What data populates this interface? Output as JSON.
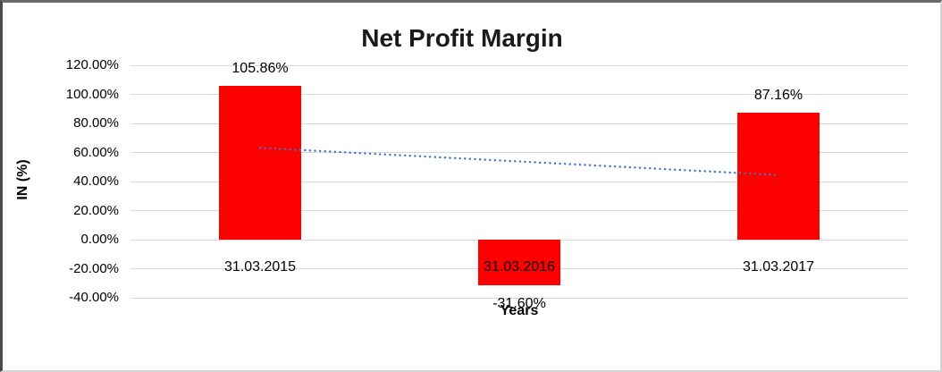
{
  "chart_data": {
    "type": "bar",
    "title": "Net Profit Margin",
    "xlabel": "Years",
    "ylabel": "IN (%)",
    "categories": [
      "31.03.2015",
      "31.03.2016",
      "31.03.2017"
    ],
    "values": [
      105.86,
      -31.6,
      87.16
    ],
    "data_labels": [
      "105.86%",
      "-31.60%",
      "87.16%"
    ],
    "bar_color": "#ff0000",
    "y_axis": {
      "min": -40,
      "max": 120,
      "step": 20,
      "tick_labels": [
        "120.00%",
        "100.00%",
        "80.00%",
        "60.00%",
        "40.00%",
        "20.00%",
        "0.00%",
        "-20.00%",
        "-40.00%"
      ],
      "format": "0.00%"
    },
    "gridlines": true,
    "gridline_color": "#d9d9d9",
    "legend": "none",
    "trendline": {
      "type": "linear",
      "style": "dotted",
      "color": "#4472c4",
      "start_value": 63.16,
      "end_value": 44.46
    }
  }
}
